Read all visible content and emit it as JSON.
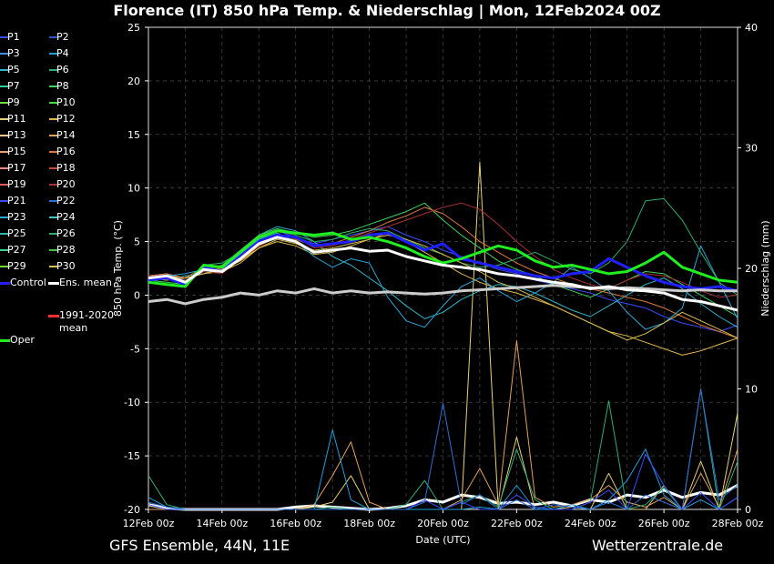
{
  "title": "Florence  (IT)  850 hPa Temp. & Niederschlag | Mon, 12Feb2024 00Z",
  "footer": {
    "model": "GFS Ensemble, 44N, 11E",
    "site": "Wetterzentrale.de"
  },
  "legend": [
    {
      "label": "P1",
      "color": "#3a4cff"
    },
    {
      "label": "P2",
      "color": "#2f55d6"
    },
    {
      "label": "P3",
      "color": "#3f8ee8"
    },
    {
      "label": "P4",
      "color": "#1f9fd8"
    },
    {
      "label": "P5",
      "color": "#2fb7c8"
    },
    {
      "label": "P6",
      "color": "#2fae7a"
    },
    {
      "label": "P7",
      "color": "#2fd19a"
    },
    {
      "label": "P8",
      "color": "#3fd45a"
    },
    {
      "label": "P9",
      "color": "#6fdc4a"
    },
    {
      "label": "P10",
      "color": "#42e03a"
    },
    {
      "label": "P11",
      "color": "#e6d27a"
    },
    {
      "label": "P12",
      "color": "#e0b84a"
    },
    {
      "label": "P13",
      "color": "#f0c890"
    },
    {
      "label": "P14",
      "color": "#e2a25e"
    },
    {
      "label": "P15",
      "color": "#f0a070"
    },
    {
      "label": "P16",
      "color": "#e07a3a"
    },
    {
      "label": "P17",
      "color": "#f08a80"
    },
    {
      "label": "P18",
      "color": "#c84a3a"
    },
    {
      "label": "P19",
      "color": "#e85a5a"
    },
    {
      "label": "P20",
      "color": "#a83030"
    },
    {
      "label": "P21",
      "color": "#3a4cff"
    },
    {
      "label": "P22",
      "color": "#2f6fd6"
    },
    {
      "label": "P23",
      "color": "#2aa8d8"
    },
    {
      "label": "P24",
      "color": "#3fc8c8"
    },
    {
      "label": "P25",
      "color": "#2fb7a8"
    },
    {
      "label": "P26",
      "color": "#2fae6a"
    },
    {
      "label": "P27",
      "color": "#3fd48a"
    },
    {
      "label": "P28",
      "color": "#3fc44a"
    },
    {
      "label": "P29",
      "color": "#6fdc3a"
    },
    {
      "label": "P30",
      "color": "#d8c050"
    },
    {
      "label": "Control",
      "color": "#2020ff"
    },
    {
      "label": "Ens. mean",
      "color": "#ffffff"
    },
    {
      "label": "1991-2020\nmean",
      "color": "#ff3030"
    },
    {
      "label": "Oper",
      "color": "#20ee20"
    }
  ],
  "chart_data": {
    "type": "line",
    "xlabel": "Date (UTC)",
    "ylabel_left": "850 hPa Temp. (°C)",
    "ylabel_right": "Niederschlag (mm)",
    "xlim": [
      "12Feb 00z",
      "28Feb 00z"
    ],
    "ylim_left": [
      -20,
      25
    ],
    "ylim_right": [
      0,
      40
    ],
    "x_ticks": [
      "12Feb 00z",
      "14Feb 00z",
      "16Feb 00z",
      "18Feb 00z",
      "20Feb 00z",
      "22Feb 00z",
      "24Feb 00z",
      "26Feb 00z",
      "28Feb 00z"
    ],
    "y_ticks_left": [
      25,
      20,
      15,
      10,
      5,
      0,
      -5,
      -10,
      -15,
      -20
    ],
    "y_ticks_right": [
      40,
      30,
      20,
      10,
      0
    ],
    "grid": true,
    "x_days": [
      0,
      0.5,
      1,
      1.5,
      2,
      2.5,
      3,
      3.5,
      4,
      4.5,
      5,
      5.5,
      6,
      6.5,
      7,
      7.5,
      8,
      8.5,
      9,
      9.5,
      10,
      10.5,
      11,
      11.5,
      12,
      12.5,
      13,
      13.5,
      14,
      14.5,
      15,
      15.5,
      16
    ],
    "temperature_series": [
      {
        "name": "Ens. mean",
        "values": [
          1.6,
          1.8,
          1.2,
          2.4,
          2.2,
          3.4,
          4.8,
          5.4,
          5.0,
          4.0,
          4.2,
          4.4,
          4.1,
          4.2,
          3.6,
          3.2,
          2.8,
          2.6,
          2.4,
          2.0,
          1.8,
          1.5,
          1.2,
          1.0,
          0.6,
          0.8,
          0.5,
          0.4,
          0.2,
          -0.4,
          -0.6,
          -1.0,
          -1.4
        ]
      },
      {
        "name": "1991-2020 mean",
        "values": [
          -0.6,
          -0.4,
          -0.8,
          -0.4,
          -0.2,
          0.2,
          0.0,
          0.4,
          0.2,
          0.6,
          0.2,
          0.4,
          0.2,
          0.3,
          0.2,
          0.1,
          0.2,
          0.4,
          0.5,
          0.6,
          0.7,
          0.8,
          0.9,
          0.8,
          0.7,
          0.6,
          0.7,
          0.6,
          0.5,
          0.4,
          0.5,
          0.4,
          0.4
        ]
      },
      {
        "name": "Oper",
        "values": [
          1.2,
          1.0,
          0.8,
          2.8,
          2.6,
          4.0,
          5.4,
          6.0,
          5.8,
          5.6,
          5.8,
          5.2,
          5.4,
          5.0,
          4.4,
          3.6,
          3.0,
          3.4,
          4.0,
          4.6,
          4.2,
          3.2,
          2.6,
          2.8,
          2.4,
          2.0,
          2.2,
          3.0,
          4.0,
          2.6,
          2.0,
          1.4,
          1.2
        ]
      },
      {
        "name": "Control",
        "values": [
          1.4,
          1.6,
          1.0,
          2.6,
          2.2,
          3.6,
          5.0,
          5.6,
          5.4,
          4.6,
          4.8,
          5.0,
          5.6,
          5.8,
          5.0,
          4.2,
          4.8,
          3.4,
          3.0,
          2.6,
          2.2,
          1.8,
          1.6,
          2.0,
          2.2,
          3.4,
          2.6,
          1.8,
          1.2,
          0.8,
          0.6,
          0.8,
          0.4
        ]
      },
      {
        "name": "P1",
        "values": [
          1.8,
          2.0,
          1.4,
          2.2,
          2.4,
          3.8,
          5.2,
          6.0,
          5.4,
          4.8,
          5.2,
          5.6,
          6.0,
          6.4,
          5.6,
          5.0,
          4.2,
          3.6,
          3.0,
          2.4,
          2.0,
          1.4,
          1.0,
          0.6,
          0.2,
          -0.4,
          -0.8,
          -1.2,
          -2.0,
          -2.6,
          -3.0,
          -3.4,
          -2.8
        ]
      },
      {
        "name": "P5",
        "values": [
          1.6,
          1.4,
          1.8,
          2.0,
          2.6,
          4.0,
          5.6,
          6.4,
          6.0,
          5.0,
          3.6,
          2.8,
          1.6,
          0.4,
          -1.0,
          -2.2,
          -1.6,
          -0.4,
          0.4,
          1.0,
          0.8,
          0.2,
          -0.6,
          -1.4,
          -2.0,
          -1.0,
          0.0,
          1.0,
          1.6,
          0.6,
          -0.8,
          -2.0,
          -3.0
        ]
      },
      {
        "name": "P8",
        "values": [
          1.4,
          1.2,
          1.0,
          2.4,
          2.8,
          4.2,
          5.6,
          6.2,
          5.8,
          5.4,
          5.6,
          6.0,
          6.6,
          7.2,
          7.8,
          8.6,
          7.0,
          5.6,
          4.4,
          3.2,
          2.4,
          1.8,
          1.0,
          0.4,
          -0.2,
          0.6,
          1.4,
          2.2,
          2.0,
          1.0,
          0.0,
          -1.0,
          -2.0
        ]
      },
      {
        "name": "P12",
        "values": [
          1.6,
          1.8,
          1.6,
          2.0,
          2.2,
          3.0,
          4.4,
          5.0,
          4.6,
          3.8,
          4.0,
          4.6,
          5.2,
          5.8,
          5.0,
          4.0,
          3.0,
          2.0,
          1.2,
          0.6,
          0.2,
          -0.4,
          -1.0,
          -1.8,
          -2.6,
          -3.4,
          -3.8,
          -4.4,
          -5.0,
          -5.6,
          -5.2,
          -4.6,
          -4.0
        ]
      },
      {
        "name": "P16",
        "values": [
          1.8,
          2.0,
          1.6,
          2.6,
          2.4,
          3.2,
          4.6,
          5.4,
          5.2,
          4.6,
          4.8,
          5.4,
          6.0,
          6.8,
          7.4,
          8.2,
          7.6,
          6.4,
          5.0,
          4.0,
          3.0,
          2.2,
          1.6,
          1.0,
          0.6,
          0.2,
          -0.2,
          -0.6,
          -1.2,
          -2.0,
          -2.8,
          -3.4,
          -4.0
        ]
      },
      {
        "name": "P20",
        "values": [
          1.8,
          1.6,
          1.4,
          2.2,
          2.0,
          3.4,
          4.8,
          5.6,
          5.4,
          4.4,
          4.6,
          5.2,
          5.8,
          6.4,
          7.0,
          7.6,
          8.2,
          8.6,
          8.0,
          6.6,
          5.0,
          3.6,
          2.4,
          1.6,
          1.0,
          0.6,
          1.4,
          2.0,
          1.8,
          1.2,
          0.4,
          -0.2,
          0.0
        ]
      },
      {
        "name": "P23",
        "values": [
          1.6,
          1.8,
          2.0,
          2.4,
          2.2,
          3.6,
          5.2,
          5.8,
          5.0,
          3.6,
          2.6,
          3.4,
          3.0,
          -0.2,
          -2.4,
          -3.0,
          -1.0,
          0.8,
          1.6,
          0.4,
          -0.6,
          0.2,
          1.2,
          2.6,
          1.6,
          0.4,
          -1.6,
          -3.2,
          -2.6,
          -1.2,
          4.6,
          1.2,
          -2.2
        ]
      },
      {
        "name": "P26",
        "values": [
          1.4,
          1.6,
          1.2,
          2.8,
          3.0,
          4.0,
          5.4,
          6.0,
          5.6,
          5.0,
          5.2,
          5.8,
          6.2,
          6.0,
          5.2,
          4.4,
          3.8,
          3.0,
          2.6,
          2.8,
          3.4,
          4.0,
          3.2,
          2.4,
          2.0,
          3.0,
          5.0,
          8.8,
          9.0,
          7.0,
          4.0,
          1.2,
          0.0
        ]
      },
      {
        "name": "P30",
        "values": [
          1.6,
          1.4,
          1.6,
          2.0,
          2.4,
          3.2,
          4.4,
          5.2,
          4.8,
          4.2,
          4.4,
          4.8,
          5.2,
          5.6,
          5.2,
          4.6,
          3.8,
          3.0,
          2.2,
          1.2,
          0.6,
          -0.2,
          -1.0,
          -1.8,
          -2.6,
          -3.4,
          -4.2,
          -3.6,
          -2.6,
          -1.6,
          -2.4,
          -3.2,
          -4.0
        ]
      }
    ],
    "precip_series": [
      {
        "name": "Ens. mean",
        "values": [
          0.4,
          0.1,
          0,
          0,
          0,
          0,
          0,
          0,
          0.2,
          0.3,
          0.2,
          0.1,
          0,
          0.1,
          0.3,
          0.8,
          0.6,
          1.2,
          1.0,
          0.5,
          0.6,
          0.4,
          0.6,
          0.3,
          0.8,
          0.6,
          1.2,
          1.0,
          1.6,
          1.0,
          1.4,
          1.2,
          2.0
        ]
      },
      {
        "name": "P11",
        "values": [
          0.3,
          0,
          0,
          0,
          0,
          0,
          0,
          0,
          0,
          0.2,
          0.6,
          2.8,
          0,
          0,
          0,
          0,
          0,
          0,
          28.8,
          0,
          6.0,
          0,
          0,
          0.2,
          0,
          3.0,
          0,
          0,
          2.0,
          0,
          4.0,
          0,
          8.0
        ]
      },
      {
        "name": "P14",
        "values": [
          0,
          0,
          0,
          0,
          0,
          0,
          0,
          0,
          0,
          0.4,
          2.8,
          5.6,
          0.6,
          0,
          0,
          0,
          0,
          0.8,
          3.4,
          0.4,
          14.0,
          1.0,
          0.2,
          0.4,
          0.8,
          2.0,
          0.6,
          0.2,
          1.0,
          0,
          3.0,
          0.2,
          5.0
        ]
      },
      {
        "name": "P4",
        "values": [
          1.0,
          0.2,
          0,
          0,
          0,
          0,
          0,
          0,
          0,
          0,
          6.6,
          0.8,
          0,
          0,
          0,
          0,
          0,
          0,
          0.2,
          0,
          2.0,
          0,
          0,
          0.4,
          0,
          0.8,
          2.4,
          5.0,
          1.2,
          0,
          0.8,
          0,
          1.0
        ]
      },
      {
        "name": "P6",
        "values": [
          2.8,
          0.4,
          0,
          0,
          0,
          0,
          0,
          0,
          0,
          0,
          0.2,
          0,
          0,
          0,
          0.4,
          2.4,
          0,
          0.6,
          1.2,
          0.2,
          5.0,
          0.8,
          0,
          0,
          0.6,
          9.0,
          0,
          0.4,
          1.8,
          0,
          10.0,
          0,
          4.0
        ]
      },
      {
        "name": "P21",
        "values": [
          0.4,
          0,
          0,
          0,
          0,
          0,
          0,
          0,
          0,
          0,
          0,
          0,
          0,
          0,
          0,
          0.8,
          0,
          0.6,
          0,
          0,
          1.2,
          0.2,
          0,
          0,
          0.6,
          1.6,
          0,
          4.6,
          2.0,
          0,
          1.4,
          0,
          1.0
        ]
      },
      {
        "name": "P22",
        "values": [
          0.6,
          0.2,
          0,
          0,
          0,
          0,
          0,
          0,
          0,
          0,
          0,
          0,
          0,
          0,
          0,
          0.6,
          8.8,
          0.4,
          1.2,
          0,
          0.8,
          0,
          0.4,
          0.2,
          0,
          0.6,
          0,
          1.2,
          0.6,
          0,
          10.0,
          0.8,
          2.0
        ]
      }
    ]
  }
}
